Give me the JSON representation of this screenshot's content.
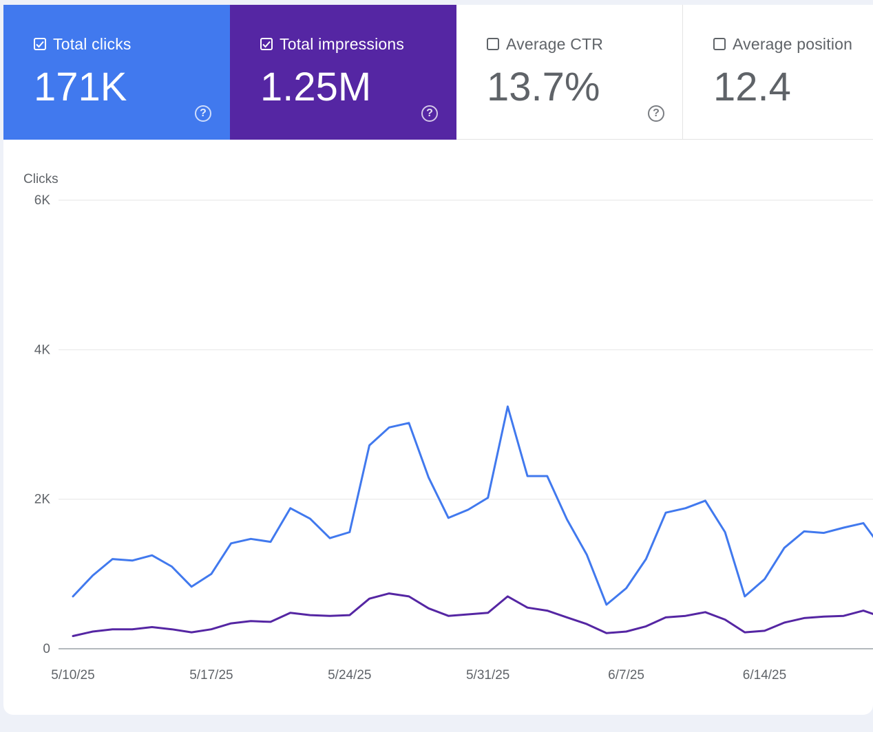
{
  "metrics": [
    {
      "label": "Total clicks",
      "value": "171K",
      "checked": true,
      "color": "#4179ee"
    },
    {
      "label": "Total impressions",
      "value": "1.25M",
      "checked": true,
      "color": "#5526a3"
    },
    {
      "label": "Average CTR",
      "value": "13.7%",
      "checked": false
    },
    {
      "label": "Average position",
      "value": "12.4",
      "checked": false
    }
  ],
  "icons": {
    "help": "help-circle-icon",
    "check": "checkmark-icon"
  },
  "help_glyph": "?",
  "chart_data": {
    "type": "line",
    "ylabel": "Clicks",
    "ylim": [
      0,
      6000
    ],
    "yticks": [
      "0",
      "2K",
      "4K",
      "6K"
    ],
    "ytick_values": [
      0,
      2000,
      4000,
      6000
    ],
    "xticks": [
      "5/10/25",
      "5/17/25",
      "5/24/25",
      "5/31/25",
      "6/7/25",
      "6/14/25"
    ],
    "xtick_indices": [
      0,
      7,
      14,
      21,
      28,
      35
    ],
    "grid": true,
    "series": [
      {
        "color": "#4179ee",
        "values": [
          700,
          980,
          1200,
          1180,
          1250,
          1100,
          830,
          1000,
          1410,
          1470,
          1430,
          1880,
          1740,
          1480,
          1560,
          2720,
          2960,
          3020,
          2290,
          1750,
          1860,
          2020,
          3240,
          2310,
          2310,
          1730,
          1260,
          590,
          810,
          1200,
          1820,
          1880,
          1980,
          1560,
          700,
          930,
          1350,
          1570,
          1550,
          1620,
          1680,
          1320
        ]
      },
      {
        "color": "#5526a3",
        "values": [
          170,
          230,
          260,
          260,
          290,
          260,
          220,
          260,
          340,
          370,
          360,
          480,
          450,
          440,
          450,
          670,
          740,
          700,
          540,
          440,
          460,
          480,
          700,
          550,
          510,
          420,
          330,
          210,
          230,
          300,
          420,
          440,
          490,
          390,
          220,
          240,
          350,
          410,
          430,
          440,
          510,
          420
        ]
      }
    ]
  }
}
